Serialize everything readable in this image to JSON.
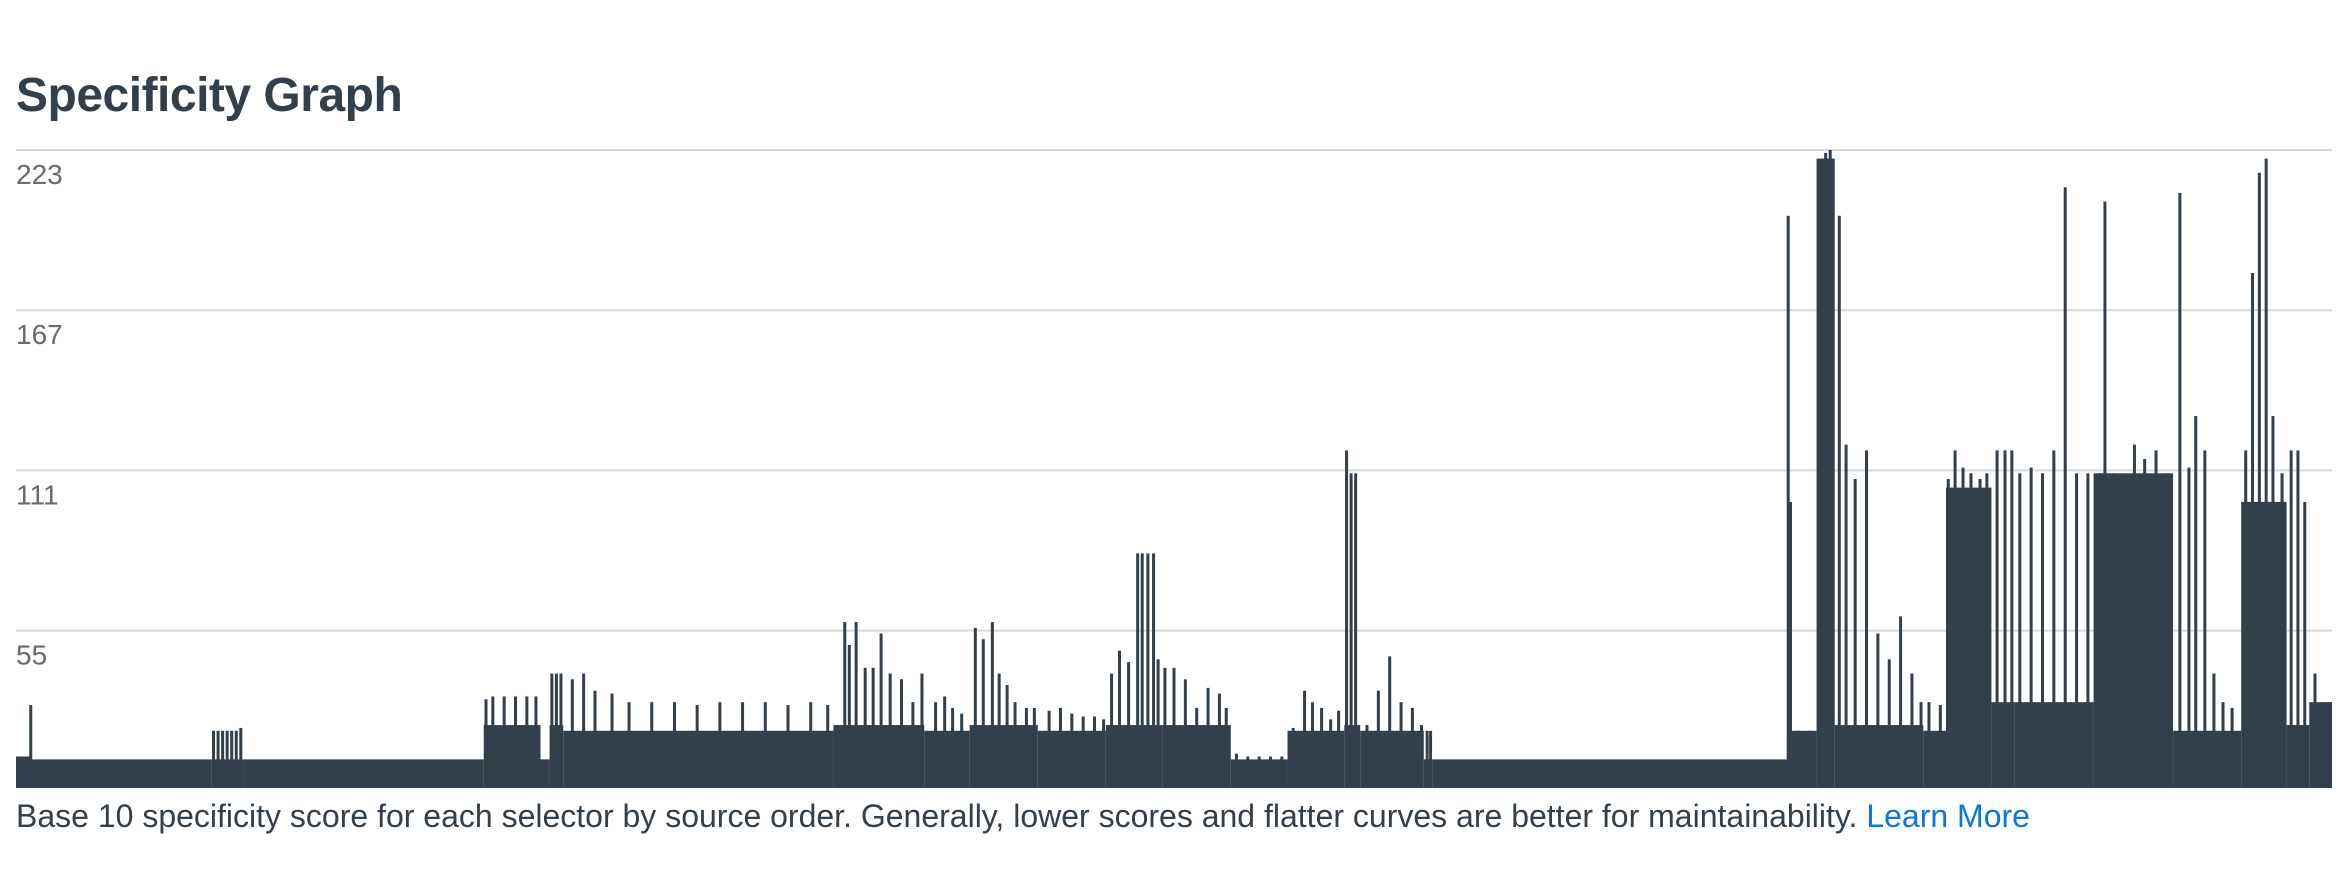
{
  "section": {
    "title": "Specificity Graph"
  },
  "caption": {
    "text": "Base 10 specificity score for each selector by source order. Generally, lower scores and flatter curves are better for maintainability.",
    "link_label": "Learn More"
  },
  "colors": {
    "area_fill": "#333f4b",
    "gridline": "#d9d9d9",
    "tick_text": "#6a6a6a",
    "link": "#0b76db"
  },
  "chart_data": {
    "type": "area",
    "title": "Specificity Graph",
    "xlabel": "",
    "ylabel": "",
    "ylim": [
      0,
      223
    ],
    "yticks": [
      55,
      111,
      167,
      223
    ],
    "grid": true,
    "x_description": "selector index in source order",
    "segments": [
      {
        "x": [
          0,
          12
        ],
        "base": 10,
        "spikes": [
          [
            1,
            11
          ],
          [
            3,
            11
          ],
          [
            5,
            11
          ],
          [
            7,
            11
          ],
          [
            9,
            11
          ],
          [
            11,
            11
          ]
        ]
      },
      {
        "x": [
          12,
          14
        ],
        "base": 11,
        "spikes": [
          [
            13,
            29
          ]
        ]
      },
      {
        "x": [
          14,
          172
        ],
        "base": 10,
        "spikes": []
      },
      {
        "x": [
          172,
          200
        ],
        "base": 10,
        "spikes": [
          [
            174,
            20
          ],
          [
            178,
            20
          ],
          [
            182,
            20
          ],
          [
            186,
            20
          ],
          [
            190,
            20
          ],
          [
            194,
            20
          ],
          [
            198,
            21
          ]
        ]
      },
      {
        "x": [
          200,
          412
        ],
        "base": 10,
        "spikes": []
      },
      {
        "x": [
          412,
          462
        ],
        "base": 22,
        "spikes": [
          [
            414,
            31
          ],
          [
            420,
            32
          ],
          [
            430,
            32
          ],
          [
            440,
            32
          ],
          [
            450,
            32
          ],
          [
            458,
            32
          ]
        ]
      },
      {
        "x": [
          462,
          470
        ],
        "base": 10,
        "spikes": []
      },
      {
        "x": [
          470,
          482
        ],
        "base": 22,
        "spikes": [
          [
            472,
            40
          ],
          [
            476,
            40
          ],
          [
            480,
            40
          ]
        ]
      },
      {
        "x": [
          482,
          720
        ],
        "base": 20,
        "spikes": [
          [
            490,
            38
          ],
          [
            500,
            40
          ],
          [
            510,
            34
          ],
          [
            525,
            33
          ],
          [
            540,
            30
          ],
          [
            560,
            30
          ],
          [
            580,
            30
          ],
          [
            600,
            29
          ],
          [
            620,
            30
          ],
          [
            640,
            30
          ],
          [
            660,
            30
          ],
          [
            680,
            29
          ],
          [
            700,
            30
          ],
          [
            715,
            29
          ]
        ]
      },
      {
        "x": [
          720,
          800
        ],
        "base": 22,
        "spikes": [
          [
            730,
            58
          ],
          [
            734,
            50
          ],
          [
            740,
            58
          ],
          [
            748,
            42
          ],
          [
            755,
            42
          ],
          [
            762,
            54
          ],
          [
            770,
            40
          ],
          [
            780,
            38
          ],
          [
            790,
            30
          ],
          [
            798,
            40
          ]
        ]
      },
      {
        "x": [
          800,
          840
        ],
        "base": 20,
        "spikes": [
          [
            810,
            30
          ],
          [
            818,
            32
          ],
          [
            825,
            28
          ],
          [
            833,
            26
          ]
        ]
      },
      {
        "x": [
          840,
          900
        ],
        "base": 22,
        "spikes": [
          [
            845,
            56
          ],
          [
            852,
            52
          ],
          [
            860,
            58
          ],
          [
            866,
            40
          ],
          [
            873,
            36
          ],
          [
            880,
            30
          ],
          [
            890,
            28
          ],
          [
            897,
            28
          ]
        ]
      },
      {
        "x": [
          900,
          960
        ],
        "base": 20,
        "spikes": [
          [
            910,
            27
          ],
          [
            920,
            28
          ],
          [
            930,
            26
          ],
          [
            940,
            25
          ],
          [
            950,
            25
          ],
          [
            958,
            24
          ]
        ]
      },
      {
        "x": [
          960,
          1010
        ],
        "base": 22,
        "spikes": [
          [
            965,
            40
          ],
          [
            972,
            48
          ],
          [
            980,
            44
          ],
          [
            988,
            82
          ],
          [
            992,
            82
          ],
          [
            997,
            82
          ],
          [
            1002,
            82
          ],
          [
            1006,
            45
          ]
        ]
      },
      {
        "x": [
          1010,
          1070
        ],
        "base": 22,
        "spikes": [
          [
            1012,
            42
          ],
          [
            1020,
            42
          ],
          [
            1030,
            38
          ],
          [
            1040,
            28
          ],
          [
            1050,
            35
          ],
          [
            1060,
            33
          ],
          [
            1066,
            28
          ]
        ]
      },
      {
        "x": [
          1070,
          1120
        ],
        "base": 10,
        "spikes": [
          [
            1075,
            12
          ],
          [
            1085,
            11
          ],
          [
            1095,
            11
          ],
          [
            1105,
            11
          ],
          [
            1115,
            11
          ]
        ]
      },
      {
        "x": [
          1120,
          1170
        ],
        "base": 20,
        "spikes": [
          [
            1125,
            21
          ],
          [
            1135,
            34
          ],
          [
            1142,
            30
          ],
          [
            1150,
            28
          ],
          [
            1158,
            24
          ],
          [
            1165,
            27
          ]
        ]
      },
      {
        "x": [
          1170,
          1184
        ],
        "base": 22,
        "spikes": [
          [
            1172,
            118
          ],
          [
            1176,
            110
          ],
          [
            1180,
            110
          ]
        ]
      },
      {
        "x": [
          1184,
          1240
        ],
        "base": 20,
        "spikes": [
          [
            1190,
            22
          ],
          [
            1200,
            34
          ],
          [
            1210,
            46
          ],
          [
            1220,
            30
          ],
          [
            1230,
            28
          ],
          [
            1238,
            22
          ]
        ]
      },
      {
        "x": [
          1240,
          1248
        ],
        "base": 10,
        "spikes": [
          [
            1243,
            20
          ],
          [
            1246,
            20
          ]
        ]
      },
      {
        "x": [
          1248,
          1560
        ],
        "base": 10,
        "spikes": []
      },
      {
        "x": [
          1560,
          1564
        ],
        "base": 80,
        "spikes": [
          [
            1561,
            200
          ],
          [
            1563,
            100
          ]
        ]
      },
      {
        "x": [
          1564,
          1586
        ],
        "base": 20,
        "spikes": [
          [
            1570,
            20
          ],
          [
            1580,
            20
          ]
        ]
      },
      {
        "x": [
          1586,
          1602
        ],
        "base": 220,
        "spikes": [
          [
            1590,
            210
          ],
          [
            1594,
            222
          ],
          [
            1598,
            223
          ],
          [
            1600,
            195
          ]
        ]
      },
      {
        "x": [
          1602,
          1680
        ],
        "base": 22,
        "spikes": [
          [
            1606,
            200
          ],
          [
            1612,
            120
          ],
          [
            1620,
            108
          ],
          [
            1630,
            118
          ],
          [
            1640,
            54
          ],
          [
            1650,
            45
          ],
          [
            1660,
            60
          ],
          [
            1670,
            40
          ],
          [
            1678,
            30
          ]
        ]
      },
      {
        "x": [
          1680,
          1700
        ],
        "base": 20,
        "spikes": [
          [
            1685,
            30
          ],
          [
            1695,
            29
          ]
        ]
      },
      {
        "x": [
          1700,
          1740
        ],
        "base": 105,
        "spikes": [
          [
            1702,
            108
          ],
          [
            1708,
            118
          ],
          [
            1715,
            112
          ],
          [
            1722,
            110
          ],
          [
            1730,
            108
          ],
          [
            1736,
            110
          ]
        ]
      },
      {
        "x": [
          1740,
          1760
        ],
        "base": 30,
        "spikes": [
          [
            1745,
            118
          ],
          [
            1752,
            118
          ],
          [
            1758,
            118
          ]
        ]
      },
      {
        "x": [
          1760,
          1830
        ],
        "base": 30,
        "spikes": [
          [
            1765,
            110
          ],
          [
            1775,
            112
          ],
          [
            1785,
            110
          ],
          [
            1795,
            118
          ],
          [
            1805,
            210
          ],
          [
            1815,
            110
          ],
          [
            1825,
            110
          ]
        ]
      },
      {
        "x": [
          1830,
          1900
        ],
        "base": 110,
        "spikes": [
          [
            1835,
            110
          ],
          [
            1840,
            205
          ],
          [
            1848,
            110
          ],
          [
            1858,
            108
          ],
          [
            1866,
            120
          ],
          [
            1875,
            115
          ],
          [
            1885,
            118
          ],
          [
            1895,
            110
          ]
        ]
      },
      {
        "x": [
          1900,
          1960
        ],
        "base": 20,
        "spikes": [
          [
            1906,
            208
          ],
          [
            1914,
            112
          ],
          [
            1920,
            130
          ],
          [
            1928,
            118
          ],
          [
            1936,
            40
          ],
          [
            1944,
            30
          ],
          [
            1952,
            28
          ]
        ]
      },
      {
        "x": [
          1960,
          2000
        ],
        "base": 100,
        "spikes": [
          [
            1964,
            118
          ],
          [
            1970,
            180
          ],
          [
            1976,
            215
          ],
          [
            1982,
            220
          ],
          [
            1988,
            130
          ],
          [
            1996,
            110
          ]
        ]
      },
      {
        "x": [
          2000,
          2020
        ],
        "base": 22,
        "spikes": [
          [
            2004,
            118
          ],
          [
            2010,
            118
          ],
          [
            2016,
            100
          ]
        ]
      },
      {
        "x": [
          2020,
          2040
        ],
        "base": 30,
        "spikes": [
          [
            2025,
            40
          ],
          [
            2032,
            30
          ],
          [
            2038,
            30
          ]
        ]
      }
    ],
    "x_max": 2040
  }
}
